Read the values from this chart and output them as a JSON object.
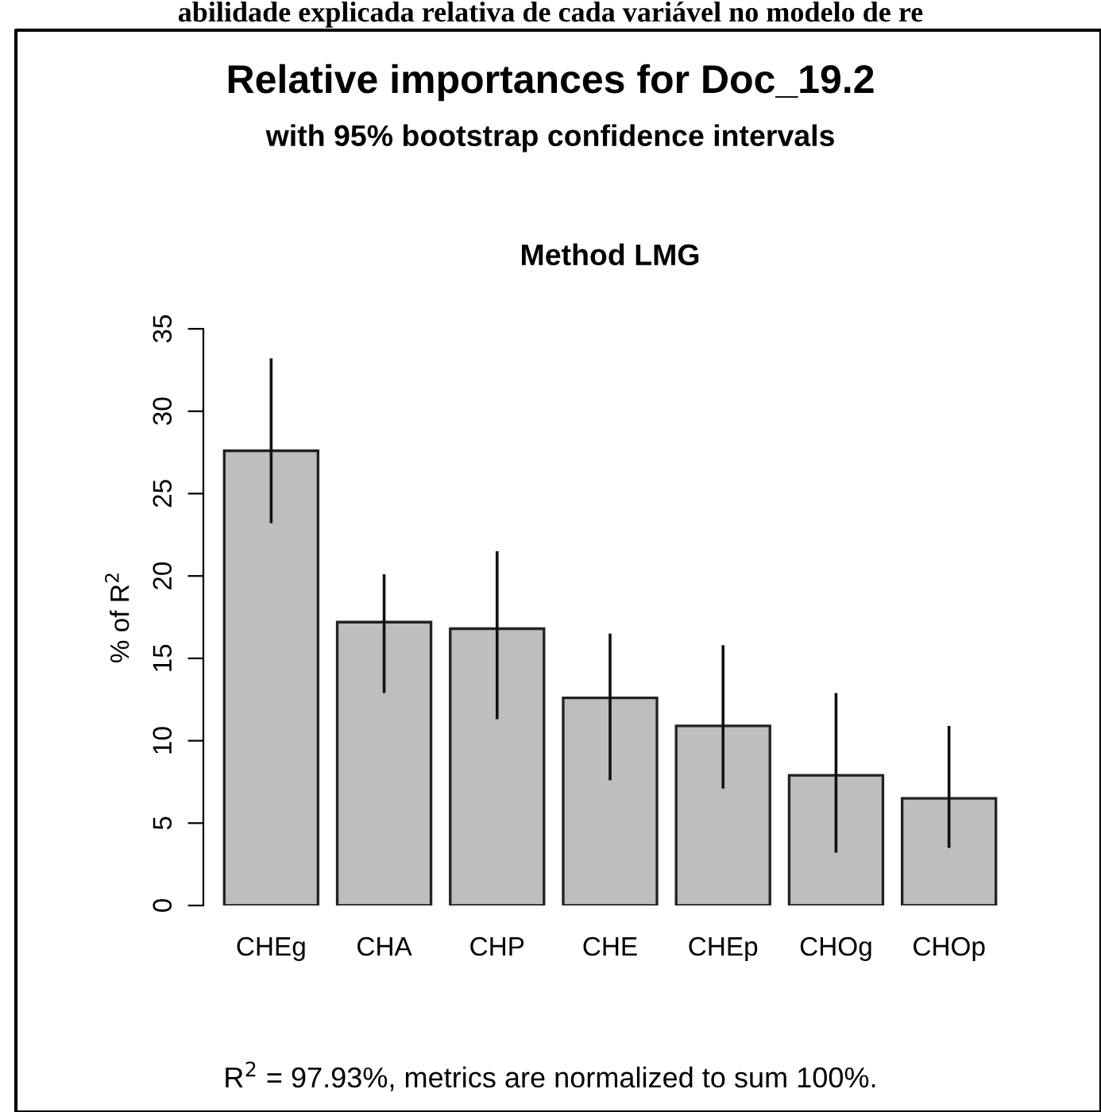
{
  "chart_data": {
    "type": "bar",
    "title": "Relative importances for Doc_19.2",
    "subtitle": "with 95% bootstrap confidence intervals",
    "xlabel": "Method LMG",
    "ylabel": "% of R$^{2}$",
    "categories": [
      "CHEg",
      "CHA",
      "CHP",
      "CHE",
      "CHEp",
      "CHOg",
      "CHOp"
    ],
    "values": [
      27.6,
      17.2,
      16.8,
      12.6,
      10.9,
      7.9,
      6.5
    ],
    "errors": [
      [
        23.2,
        33.2
      ],
      [
        12.9,
        20.1
      ],
      [
        11.3,
        21.5
      ],
      [
        7.6,
        16.5
      ],
      [
        7.1,
        15.8
      ],
      [
        3.2,
        12.9
      ],
      [
        3.5,
        10.9
      ]
    ],
    "color": "#bebebe",
    "ylim": [
      0,
      35
    ],
    "yticks": [
      0,
      5,
      10,
      15,
      20,
      25,
      30,
      35
    ],
    "grid": false,
    "legend": false,
    "annotations": [
      "abilidade explicada relativa de cada variável no modelo de re",
      "R$^{2}$ = 97.93%, metrics are normalized to sum 100%."
    ]
  }
}
